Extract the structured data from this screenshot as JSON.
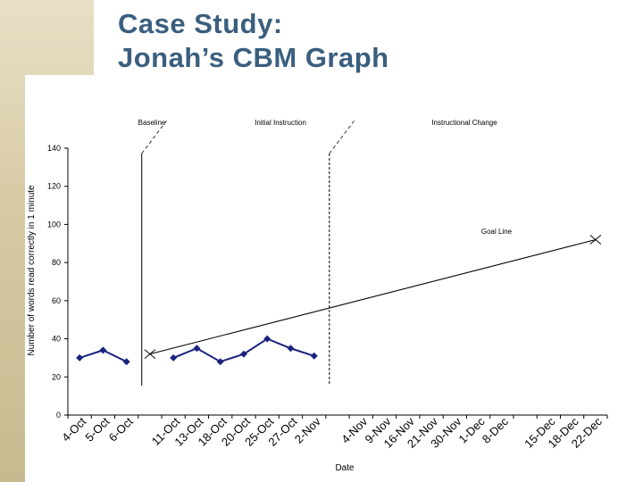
{
  "slide": {
    "title": "Case Study:\nJonah’s CBM Graph"
  },
  "chart_data": {
    "type": "line",
    "ylabel": "Number of words read correctly in 1 minute",
    "xlabel": "Date",
    "ylim": [
      0,
      140
    ],
    "yticks": [
      0,
      20,
      40,
      60,
      80,
      100,
      120,
      140
    ],
    "categories": [
      "4-Oct",
      "5-Oct",
      "6-Oct",
      "",
      "11-Oct",
      "13-Oct",
      "18-Oct",
      "20-Oct",
      "25-Oct",
      "27-Oct",
      "2-Nov",
      "",
      "4-Nov",
      "9-Nov",
      "16-Nov",
      "21-Nov",
      "30-Nov",
      "1-Dec",
      "8-Dec",
      "",
      "15-Dec",
      "18-Dec",
      "22-Dec"
    ],
    "segments": [
      {
        "name": "Baseline",
        "x": [
          "4-Oct",
          "5-Oct",
          "6-Oct"
        ],
        "values": [
          30,
          34,
          28
        ]
      },
      {
        "name": "Initial Instruction",
        "x": [
          "11-Oct",
          "13-Oct",
          "18-Oct",
          "20-Oct",
          "25-Oct",
          "27-Oct",
          "2-Nov"
        ],
        "values": [
          30,
          35,
          28,
          32,
          40,
          35,
          31
        ]
      }
    ],
    "goal_line": {
      "label": "Goal Line",
      "from": {
        "x": 3,
        "y": 32
      },
      "to": {
        "x": 22,
        "y": 92
      }
    },
    "phase_lines": [
      {
        "after_index": 3,
        "label": "Initial Instruction"
      },
      {
        "after_index": 11,
        "label": "Instructional Change"
      }
    ],
    "phase_labels": [
      "Baseline",
      "Initial Instruction",
      "Instructional Change"
    ],
    "colors": {
      "data": "#1a237e",
      "lines": "#000000"
    },
    "grid": false,
    "legend": "none"
  }
}
